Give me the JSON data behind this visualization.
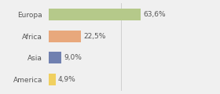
{
  "categories": [
    "Europa",
    "Africa",
    "Asia",
    "America"
  ],
  "values": [
    63.6,
    22.5,
    9.0,
    4.9
  ],
  "labels": [
    "63,6%",
    "22,5%",
    "9,0%",
    "4,9%"
  ],
  "bar_colors": [
    "#b5c98a",
    "#e8a87c",
    "#7080b0",
    "#f0d060"
  ],
  "background_color": "#f0f0f0",
  "xlim": [
    0,
    100
  ],
  "bar_height": 0.55,
  "label_fontsize": 6.5,
  "category_fontsize": 6.5,
  "grid_color": "#d0d0d0",
  "text_color": "#555555"
}
